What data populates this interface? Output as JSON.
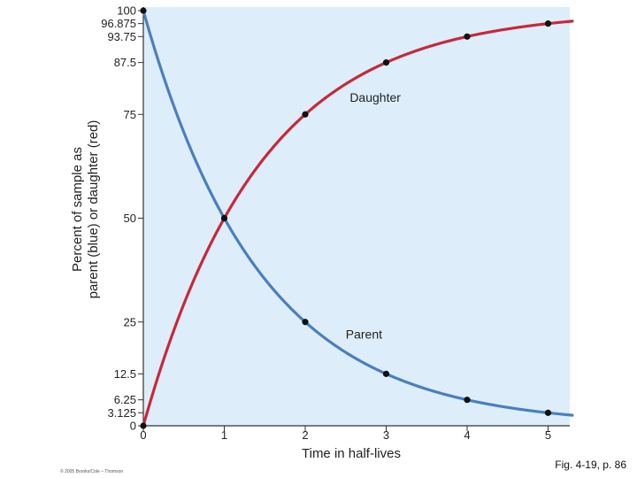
{
  "chart_data": {
    "type": "line",
    "title": "",
    "xlabel": "Time in half-lives",
    "ylabel_line1": "Percent of sample as",
    "ylabel_line2": "parent (blue) or daughter (red)",
    "xlim": [
      0,
      5.3
    ],
    "ylim": [
      0,
      100
    ],
    "x_ticks": [
      0,
      1,
      2,
      3,
      4,
      5
    ],
    "x_tick_labels": [
      "0",
      "1",
      "2",
      "3",
      "4",
      "5"
    ],
    "y_ticks": [
      0,
      3.125,
      6.25,
      12.5,
      25,
      50,
      75,
      87.5,
      93.75,
      96.875,
      100
    ],
    "y_tick_labels": [
      "0",
      "3.125",
      "6.25",
      "12.5",
      "25",
      "50",
      "75",
      "87.5",
      "93.75",
      "96.875",
      "100"
    ],
    "series": [
      {
        "name": "Parent",
        "color": "#4a7fbf",
        "marker_x": [
          0,
          1,
          2,
          3,
          4,
          5
        ],
        "marker_y": [
          100,
          50,
          25,
          12.5,
          6.25,
          3.125
        ]
      },
      {
        "name": "Daughter",
        "color": "#c8283a",
        "marker_x": [
          0,
          1,
          2,
          3,
          4,
          5
        ],
        "marker_y": [
          0,
          50,
          75,
          87.5,
          93.75,
          96.875
        ]
      }
    ],
    "annotations": [
      {
        "text": "Daughter",
        "x": 2.55,
        "y": 78
      },
      {
        "text": "Parent",
        "x": 2.5,
        "y": 21
      }
    ],
    "plot_background": "#ddeefa"
  },
  "caption": "Fig. 4-19, p. 86",
  "copyright": "© 2005 Brooks/Cole – Thomson"
}
